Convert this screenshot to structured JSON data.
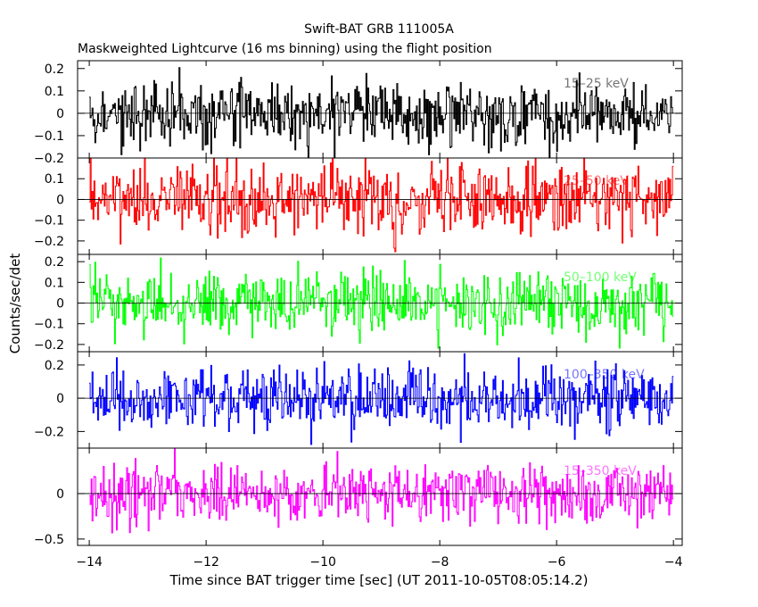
{
  "chart_data": {
    "type": "line",
    "title": "Swift-BAT GRB 111005A",
    "subtitle": "Maskweighted Lightcurve (16 ms binning) using the flight position",
    "xlabel": "Time since BAT trigger time [sec] (UT 2011-10-05T08:05:14.2)",
    "ylabel": "Counts/sec/det",
    "xlim": [
      -14.2,
      -3.85
    ],
    "xticks": [
      -14,
      -12,
      -10,
      -8,
      -6,
      -4
    ],
    "xtick_labels": [
      "−14",
      "−12",
      "−10",
      "−8",
      "−6",
      "−4"
    ],
    "x_start": -14.0,
    "x_end": -4.0,
    "bin_width": 0.016,
    "grid": false,
    "panels": [
      {
        "name": "15–25 keV",
        "color": "#000000",
        "ylim": [
          -0.2,
          0.235
        ],
        "yticks": [
          -0.2,
          -0.1,
          0,
          0.1,
          0.2
        ],
        "ytick_labels": [
          "−0.2",
          "−0.1",
          "0",
          "0.1",
          "0.2"
        ],
        "noise_sigma": 0.075,
        "clip": [
          -0.2,
          0.235
        ]
      },
      {
        "name": "25–50 keV",
        "color": "#ff0000",
        "ylim": [
          -0.265,
          0.2
        ],
        "yticks": [
          -0.2,
          -0.1,
          0,
          0.1
        ],
        "ytick_labels": [
          "−0.2",
          "−0.1",
          "0",
          "0.1"
        ],
        "noise_sigma": 0.08,
        "clip": [
          -0.26,
          0.2
        ]
      },
      {
        "name": "50–100 keV",
        "color": "#00ff00",
        "ylim": [
          -0.235,
          0.235
        ],
        "yticks": [
          -0.2,
          -0.1,
          0,
          0.1,
          0.2
        ],
        "ytick_labels": [
          "−0.2",
          "−0.1",
          "0",
          "0.1",
          "0.2"
        ],
        "noise_sigma": 0.075,
        "clip": [
          -0.23,
          0.23
        ]
      },
      {
        "name": "100–350 keV",
        "color": "#0000ff",
        "ylim": [
          -0.3,
          0.28
        ],
        "yticks": [
          -0.2,
          0,
          0.2
        ],
        "ytick_labels": [
          "−0.2",
          "0",
          "0.2"
        ],
        "noise_sigma": 0.09,
        "clip": [
          -0.29,
          0.27
        ]
      },
      {
        "name": "15–350 keV",
        "color": "#ff00ff",
        "ylim": [
          -0.57,
          0.5
        ],
        "yticks": [
          -0.5,
          0
        ],
        "ytick_labels": [
          "−0.5",
          "0"
        ],
        "noise_sigma": 0.16,
        "clip": [
          -0.56,
          0.49
        ]
      }
    ]
  }
}
